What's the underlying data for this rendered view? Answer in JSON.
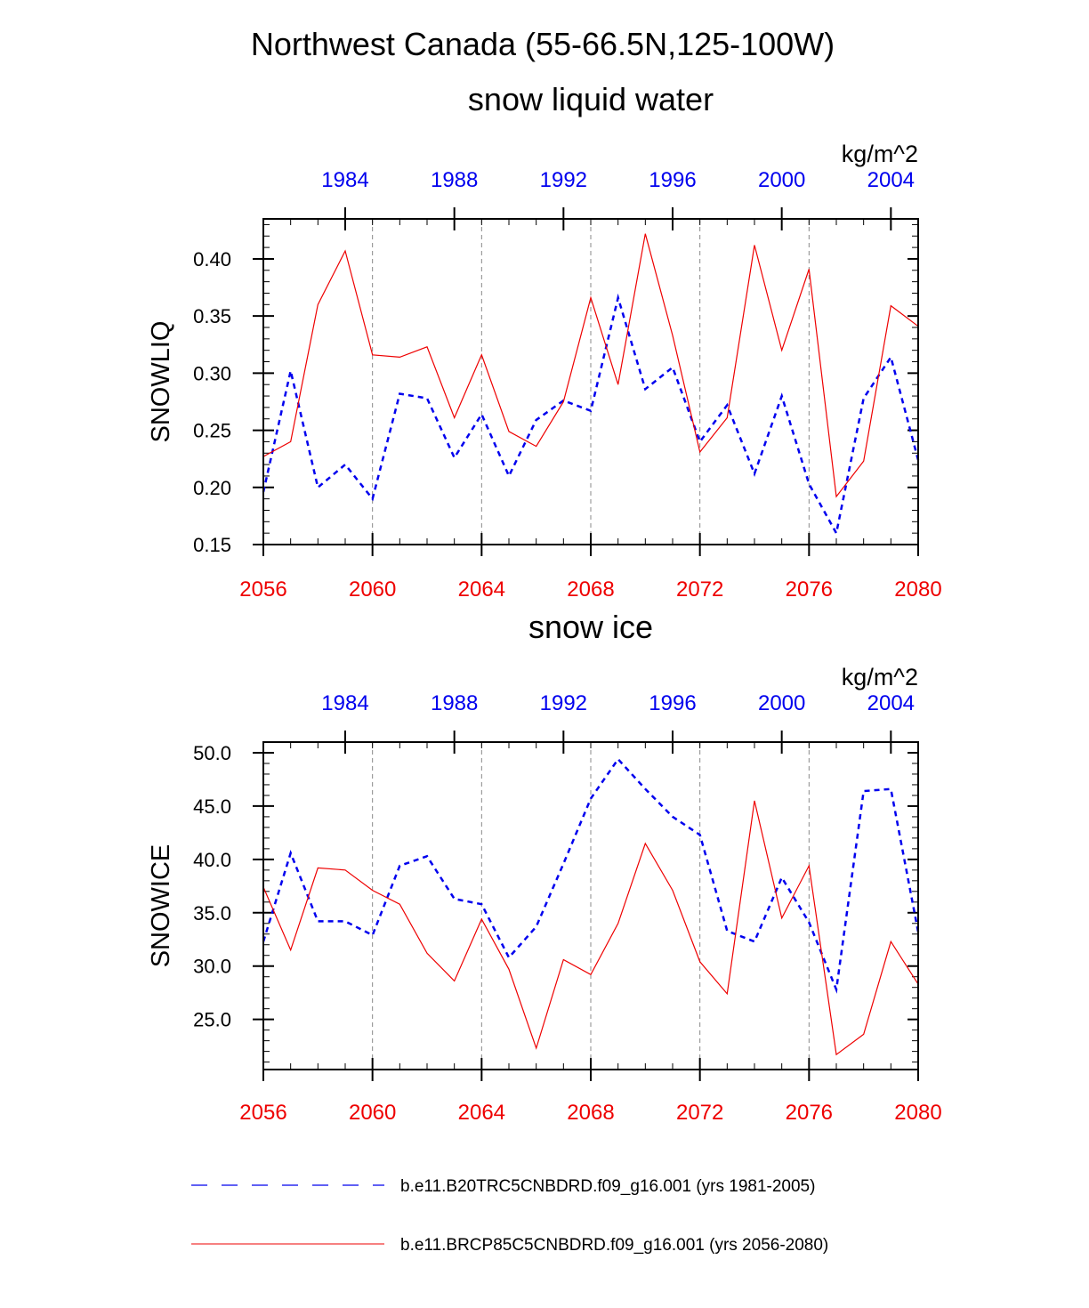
{
  "title": "Northwest Canada (55-66.5N,125-100W)",
  "colors": {
    "series_a": "#0000ee",
    "series_b": "#ee0000",
    "axis": "#000000",
    "grid": "#888888"
  },
  "legend": [
    {
      "label": "b.e11.B20TRC5CNBDRD.f09_g16.001 (yrs 1981-2005)",
      "style": "dashed",
      "color": "#0000ee"
    },
    {
      "label": "b.e11.BRCP85C5CNBDRD.f09_g16.001 (yrs 2056-2080)",
      "style": "solid",
      "color": "#ee0000"
    }
  ],
  "chart_data": [
    {
      "type": "line",
      "subtitle": "snow liquid water",
      "ylabel": "SNOWLIQ",
      "units": "kg/m^2",
      "ylim": [
        0.15,
        0.435
      ],
      "yticks": [
        0.15,
        0.2,
        0.25,
        0.3,
        0.35,
        0.4
      ],
      "ytick_labels": [
        "0.15",
        "0.20",
        "0.25",
        "0.30",
        "0.35",
        "0.40"
      ],
      "x_bottom": {
        "range": [
          2056,
          2080
        ],
        "ticks": [
          2056,
          2060,
          2064,
          2068,
          2072,
          2076,
          2080
        ],
        "labels": [
          "2056",
          "2060",
          "2064",
          "2068",
          "2072",
          "2076",
          "2080"
        ]
      },
      "x_top": {
        "range": [
          1981,
          2005
        ],
        "ticks": [
          1984,
          1988,
          1992,
          1996,
          2000,
          2004
        ],
        "labels": [
          "1984",
          "1988",
          "1992",
          "1996",
          "2000",
          "2004"
        ]
      },
      "grid": "vertical dashed at 2060, 2064, 2068, 2072, 2076",
      "series": [
        {
          "years": [
            1981,
            1982,
            1983,
            1984,
            1985,
            1986,
            1987,
            1988,
            1989,
            1990,
            1991,
            1992,
            1993,
            1994,
            1995,
            1996,
            1997,
            1998,
            1999,
            2000,
            2001,
            2002,
            2003,
            2004,
            2005
          ],
          "values": [
            0.196,
            0.302,
            0.2,
            0.22,
            0.19,
            0.282,
            0.278,
            0.226,
            0.264,
            0.21,
            0.259,
            0.276,
            0.267,
            0.366,
            0.286,
            0.305,
            0.24,
            0.272,
            0.212,
            0.28,
            0.203,
            0.16,
            0.278,
            0.314,
            0.224
          ],
          "color": "#0000ee",
          "style": "dashed"
        },
        {
          "years": [
            2056,
            2057,
            2058,
            2059,
            2060,
            2061,
            2062,
            2063,
            2064,
            2065,
            2066,
            2067,
            2068,
            2069,
            2070,
            2071,
            2072,
            2073,
            2074,
            2075,
            2076,
            2077,
            2078,
            2079,
            2080
          ],
          "values": [
            0.227,
            0.24,
            0.36,
            0.407,
            0.316,
            0.314,
            0.323,
            0.261,
            0.316,
            0.249,
            0.236,
            0.275,
            0.366,
            0.29,
            0.422,
            0.333,
            0.231,
            0.261,
            0.412,
            0.32,
            0.391,
            0.192,
            0.223,
            0.359,
            0.341
          ],
          "color": "#ee0000",
          "style": "solid"
        }
      ]
    },
    {
      "type": "line",
      "subtitle": "snow ice",
      "ylabel": "SNOWICE",
      "units": "kg/m^2",
      "ylim": [
        20.3,
        51.0
      ],
      "yticks": [
        25,
        30,
        35,
        40,
        45,
        50
      ],
      "ytick_labels": [
        "25.0",
        "30.0",
        "35.0",
        "40.0",
        "45.0",
        "50.0"
      ],
      "x_bottom": {
        "range": [
          2056,
          2080
        ],
        "ticks": [
          2056,
          2060,
          2064,
          2068,
          2072,
          2076,
          2080
        ],
        "labels": [
          "2056",
          "2060",
          "2064",
          "2068",
          "2072",
          "2076",
          "2080"
        ]
      },
      "x_top": {
        "range": [
          1981,
          2005
        ],
        "ticks": [
          1984,
          1988,
          1992,
          1996,
          2000,
          2004
        ],
        "labels": [
          "1984",
          "1988",
          "1992",
          "1996",
          "2000",
          "2004"
        ]
      },
      "grid": "vertical dashed at 2060, 2064, 2068, 2072, 2076",
      "series": [
        {
          "years": [
            1981,
            1982,
            1983,
            1984,
            1985,
            1986,
            1987,
            1988,
            1989,
            1990,
            1991,
            1992,
            1993,
            1994,
            1995,
            1996,
            1997,
            1998,
            1999,
            2000,
            2001,
            2002,
            2003,
            2004,
            2005
          ],
          "values": [
            32.3,
            40.6,
            34.2,
            34.2,
            32.9,
            39.4,
            40.3,
            36.3,
            35.8,
            30.8,
            33.7,
            39.6,
            45.7,
            49.4,
            46.6,
            44.0,
            42.3,
            33.3,
            32.3,
            38.3,
            34.1,
            27.8,
            46.4,
            46.6,
            33.2
          ],
          "color": "#0000ee",
          "style": "dashed"
        },
        {
          "years": [
            2056,
            2057,
            2058,
            2059,
            2060,
            2061,
            2062,
            2063,
            2064,
            2065,
            2066,
            2067,
            2068,
            2069,
            2070,
            2071,
            2072,
            2073,
            2074,
            2075,
            2076,
            2077,
            2078,
            2079,
            2080
          ],
          "values": [
            37.4,
            31.5,
            39.2,
            39.0,
            37.1,
            35.8,
            31.2,
            28.6,
            34.4,
            29.7,
            22.3,
            30.6,
            29.2,
            34.0,
            41.5,
            37.1,
            30.4,
            27.4,
            45.5,
            34.5,
            39.4,
            21.7,
            23.6,
            32.3,
            28.3
          ],
          "color": "#ee0000",
          "style": "solid"
        }
      ]
    }
  ]
}
